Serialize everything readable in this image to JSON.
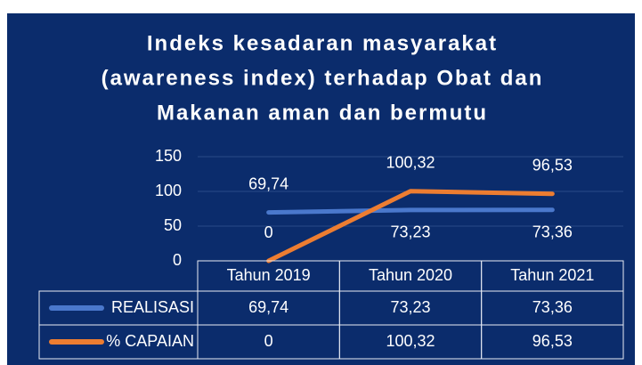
{
  "chart_data": {
    "type": "line",
    "title": [
      "Indeks kesadaran masyarakat",
      "(awareness index) terhadap Obat dan",
      "Makanan aman dan bermutu"
    ],
    "categories": [
      "Tahun 2019",
      "Tahun 2020",
      "Tahun 2021"
    ],
    "series": [
      {
        "name": "REALISASI",
        "color": "#4a78cc",
        "values": [
          69.74,
          73.23,
          73.36
        ],
        "value_labels": [
          "69,74",
          "73,23",
          "73,36"
        ]
      },
      {
        "name": "% CAPAIAN",
        "color": "#ed7d31",
        "values": [
          0,
          100.32,
          96.53
        ],
        "value_labels": [
          "0",
          "100,32",
          "96,53"
        ]
      }
    ],
    "ylim": [
      0,
      150
    ],
    "yticks": [
      0,
      50,
      100,
      150
    ],
    "grid": true
  }
}
